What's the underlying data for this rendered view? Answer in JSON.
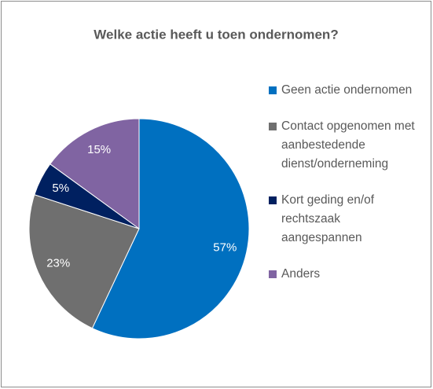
{
  "chart_data": {
    "type": "pie",
    "title": "Welke actie heeft u toen ondernomen?",
    "categories": [
      "Geen actie ondernomen",
      "Contact opgenomen met aanbestedende dienst/onderneming",
      "Kort geding en/of rechtszaak aangespannen",
      "Anders"
    ],
    "values": [
      57,
      23,
      5,
      15
    ],
    "value_labels": [
      "57%",
      "23%",
      "5%",
      "15%"
    ],
    "colors": [
      "#0070c0",
      "#6f6f6f",
      "#002060",
      "#8064a2"
    ],
    "legend": "right"
  }
}
